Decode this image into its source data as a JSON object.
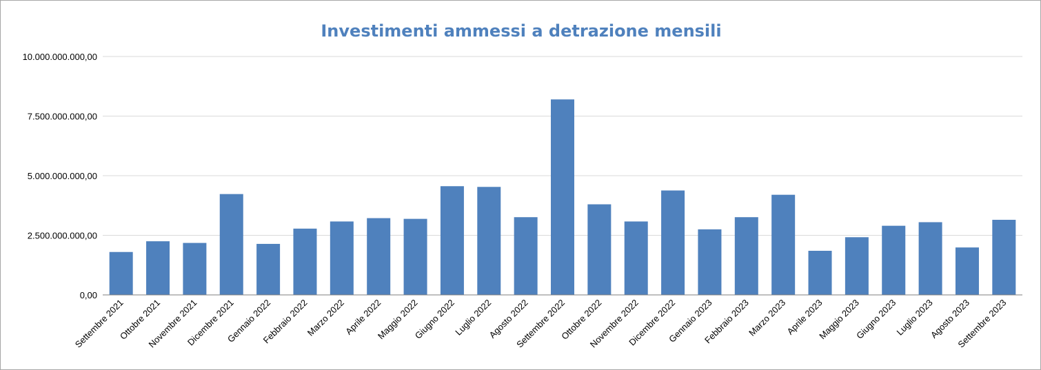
{
  "chart_data": {
    "type": "bar",
    "title": "Investimenti ammessi a detrazione mensili",
    "xlabel": "",
    "ylabel": "",
    "ylim": [
      0,
      10000000000
    ],
    "yticks": [
      0,
      2500000000,
      5000000000,
      7500000000,
      10000000000
    ],
    "ytick_labels": [
      "0,00",
      "2.500.000.000,00",
      "5.000.000.000,00",
      "7.500.000.000,00",
      "10.000.000.000,00"
    ],
    "grid": true,
    "legend": "none",
    "bar_color": "#4f81bd",
    "title_color": "#4f81bd",
    "categories": [
      "Settembre 2021",
      "Ottobre 2021",
      "Novembre 2021",
      "Dicembre 2021",
      "Gennaio 2022",
      "Febbraio 2022",
      "Marzo 2022",
      "Aprile 2022",
      "Maggio 2022",
      "Giugno 2022",
      "Luglio 2022",
      "Agosto 2022",
      "Settembre 2022",
      "Ottobre 2022",
      "Novembre 2022",
      "Dicembre 2022",
      "Gennaio 2023",
      "Febbraio 2023",
      "Marzo 2023",
      "Aprile 2023",
      "Maggio 2023",
      "Giugno 2023",
      "Luglio 2023",
      "Agosto 2023",
      "Settembre 2023"
    ],
    "values": [
      1800000000,
      2250000000,
      2180000000,
      4230000000,
      2140000000,
      2780000000,
      3080000000,
      3220000000,
      3190000000,
      4560000000,
      4530000000,
      3260000000,
      8200000000,
      3800000000,
      3080000000,
      4380000000,
      2750000000,
      3260000000,
      4200000000,
      1850000000,
      2420000000,
      2900000000,
      3050000000,
      1990000000,
      3150000000
    ]
  }
}
